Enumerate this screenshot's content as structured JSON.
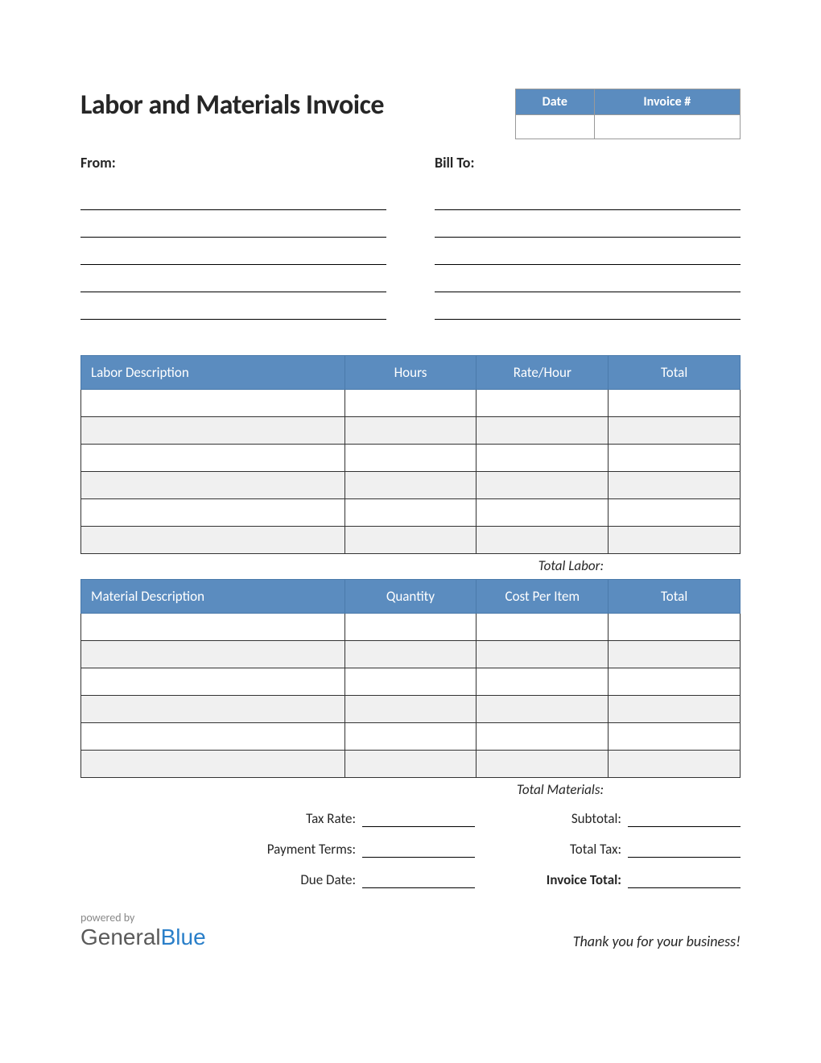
{
  "title": "Labor and Materials Invoice",
  "meta": {
    "date_label": "Date",
    "invoice_num_label": "Invoice #",
    "date_value": "",
    "invoice_num_value": ""
  },
  "from_label": "From:",
  "billto_label": "Bill To:",
  "address_line_count": 5,
  "labor_table": {
    "headers": {
      "desc": "Labor Description",
      "hours": "Hours",
      "rate": "Rate/Hour",
      "total": "Total"
    },
    "row_count": 6,
    "total_label": "Total Labor:"
  },
  "material_table": {
    "headers": {
      "desc": "Material Description",
      "qty": "Quantity",
      "cost": "Cost Per Item",
      "total": "Total"
    },
    "row_count": 6,
    "total_label": "Total Materials:"
  },
  "summary": {
    "left": {
      "tax_rate": "Tax Rate:",
      "payment_terms": "Payment Terms:",
      "due_date": "Due Date:"
    },
    "right": {
      "subtotal": "Subtotal:",
      "total_tax": "Total Tax:",
      "invoice_total": "Invoice Total:"
    }
  },
  "footer": {
    "powered_by": "powered by",
    "brand_1": "General",
    "brand_2": "Blue",
    "thankyou": "Thank you for your business!"
  },
  "colors": {
    "header_bg": "#5b8cbf",
    "header_text": "#ffffff",
    "alt_row": "#f0f0f0",
    "border": "#333333",
    "text": "#262626",
    "brand_gray": "#5a5a5a",
    "brand_blue": "#2a7fc9"
  }
}
